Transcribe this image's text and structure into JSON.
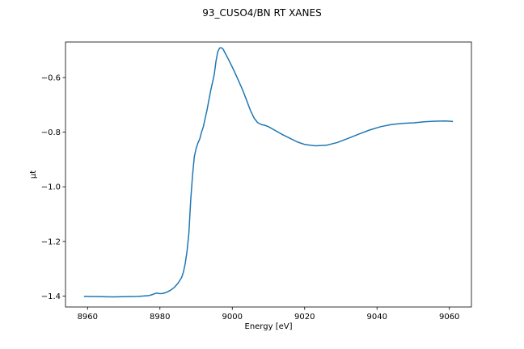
{
  "chart_data": {
    "type": "line",
    "title": "93_CUSO4/BN RT XANES",
    "xlabel": "Energy [eV]",
    "ylabel": "μt",
    "xlim": [
      8953.9,
      9066.1
    ],
    "ylim": [
      -1.4399,
      -0.4701
    ],
    "xticks": [
      8960,
      8980,
      9000,
      9020,
      9040,
      9060
    ],
    "xtick_labels": [
      "8960",
      "8980",
      "9000",
      "9020",
      "9040",
      "9060"
    ],
    "yticks": [
      -1.4,
      -1.2,
      -1.0,
      -0.8,
      -0.6
    ],
    "ytick_labels": [
      "−1.4",
      "−1.2",
      "−1.0",
      "−0.8",
      "−0.6"
    ],
    "grid": false,
    "color": "#1f77b4",
    "series": [
      {
        "x": [
          8959,
          8963,
          8967,
          8971,
          8974,
          8977,
          8978,
          8979,
          8980,
          8981,
          8982,
          8983,
          8984,
          8985,
          8986,
          8986.5,
          8987,
          8987.5,
          8988,
          8988.5,
          8989,
          8989.5,
          8990,
          8990.5,
          8991,
          8991.5,
          8992,
          8993,
          8994,
          8995,
          8995.5,
          8996,
          8996.5,
          8997,
          8997.5,
          8998,
          8999,
          9000,
          9001,
          9002,
          9003,
          9004,
          9005,
          9006,
          9007,
          9008,
          9009,
          9010,
          9012,
          9014,
          9016,
          9018,
          9020,
          9023,
          9026,
          9029,
          9032,
          9035,
          9038,
          9041,
          9044,
          9047,
          9050,
          9053,
          9056,
          9059,
          9061
        ],
        "y": [
          -1.401,
          -1.402,
          -1.403,
          -1.402,
          -1.401,
          -1.398,
          -1.394,
          -1.389,
          -1.391,
          -1.39,
          -1.385,
          -1.378,
          -1.368,
          -1.353,
          -1.332,
          -1.312,
          -1.28,
          -1.235,
          -1.17,
          -1.05,
          -0.96,
          -0.89,
          -0.86,
          -0.84,
          -0.825,
          -0.8,
          -0.78,
          -0.72,
          -0.65,
          -0.59,
          -0.54,
          -0.505,
          -0.492,
          -0.491,
          -0.497,
          -0.51,
          -0.535,
          -0.562,
          -0.59,
          -0.62,
          -0.65,
          -0.685,
          -0.72,
          -0.748,
          -0.765,
          -0.772,
          -0.775,
          -0.78,
          -0.795,
          -0.81,
          -0.823,
          -0.836,
          -0.845,
          -0.85,
          -0.848,
          -0.838,
          -0.823,
          -0.807,
          -0.792,
          -0.78,
          -0.772,
          -0.768,
          -0.766,
          -0.762,
          -0.76,
          -0.759,
          -0.761
        ]
      }
    ]
  }
}
